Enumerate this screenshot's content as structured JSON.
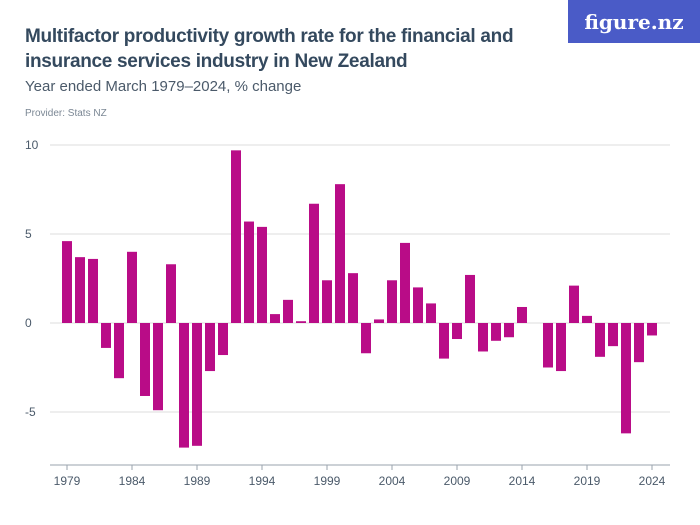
{
  "header": {
    "title": "Multifactor productivity growth rate for the financial and insurance services industry in New Zealand",
    "subtitle": "Year ended March 1979–2024, % change",
    "provider": "Provider: Stats NZ",
    "logo": "figure.nz"
  },
  "colors": {
    "bar": "#b90c87",
    "logo_bg": "#4a5bc7",
    "grid": "#dddddd"
  },
  "chart_data": {
    "type": "bar",
    "title": "Multifactor productivity growth rate for the financial and insurance services industry in New Zealand",
    "subtitle": "Year ended March 1979–2024, % change",
    "xlabel": "",
    "ylabel": "",
    "ylim": [
      -8,
      10
    ],
    "yticks": [
      10,
      5,
      0,
      -5
    ],
    "ytick_labels": [
      "10",
      "5",
      "0",
      "-5"
    ],
    "xticks": [
      1979,
      1984,
      1989,
      1994,
      1999,
      2004,
      2009,
      2014,
      2019,
      2024
    ],
    "xtick_labels": [
      "1979",
      "1984",
      "1989",
      "1994",
      "1999",
      "2004",
      "2009",
      "2014",
      "2019",
      "2024"
    ],
    "grid": true,
    "categories": [
      1979,
      1980,
      1981,
      1982,
      1983,
      1984,
      1985,
      1986,
      1987,
      1988,
      1989,
      1990,
      1991,
      1992,
      1993,
      1994,
      1995,
      1996,
      1997,
      1998,
      1999,
      2000,
      2001,
      2002,
      2003,
      2004,
      2005,
      2006,
      2007,
      2008,
      2009,
      2010,
      2011,
      2012,
      2013,
      2014,
      2015,
      2016,
      2017,
      2018,
      2019,
      2020,
      2021,
      2022,
      2023,
      2024
    ],
    "values": [
      4.6,
      3.7,
      3.6,
      -1.4,
      -3.1,
      4.0,
      -4.1,
      -4.9,
      3.3,
      -7.0,
      -6.9,
      -2.7,
      -1.8,
      9.7,
      5.7,
      5.4,
      0.5,
      1.3,
      0.1,
      6.7,
      2.4,
      7.8,
      2.8,
      -1.7,
      0.2,
      2.4,
      4.5,
      2.0,
      1.1,
      -2.0,
      -0.9,
      2.7,
      -1.6,
      -1.0,
      -0.8,
      0.9,
      0,
      -2.5,
      -2.7,
      2.1,
      0.4,
      -1.9,
      -1.3,
      -6.2,
      -2.2,
      -0.7
    ]
  }
}
